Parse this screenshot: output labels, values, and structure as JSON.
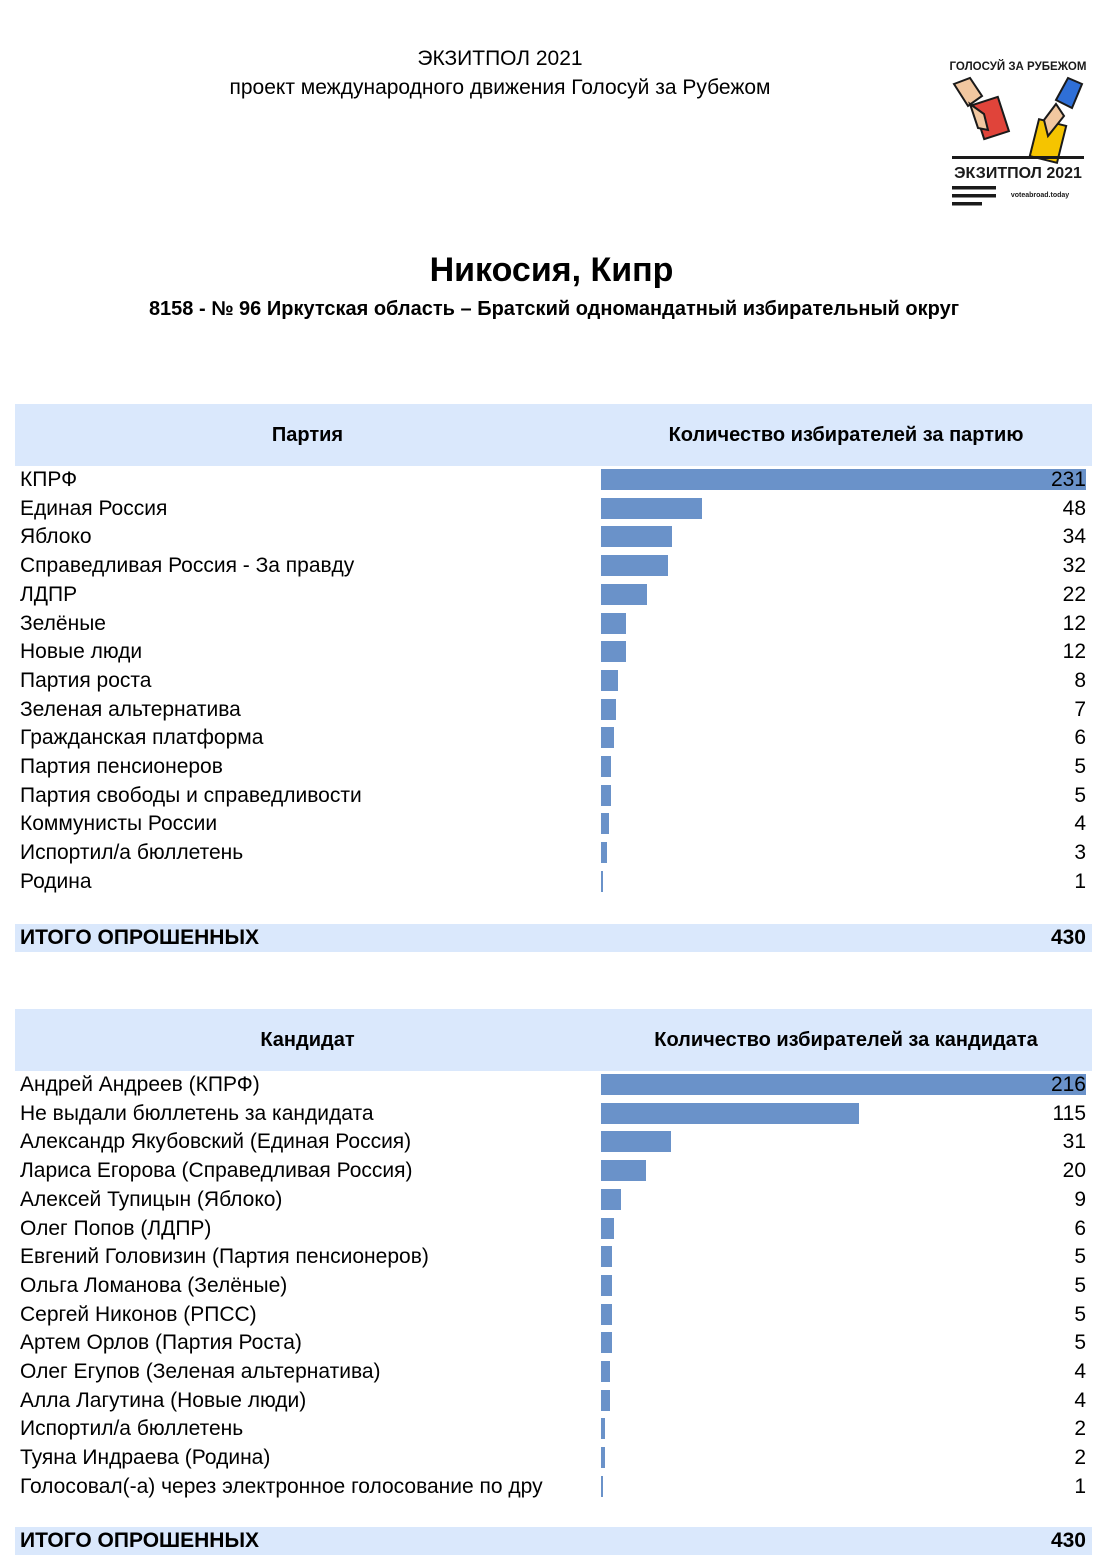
{
  "header": {
    "line1": "ЭКЗИТПОЛ 2021",
    "line2": "проект международного движения Голосуй за Рубежом"
  },
  "logo": {
    "top_text": "ГОЛОСУЙ ЗА РУБЕЖОМ",
    "bottom_text": "ЭКЗИТПОЛ 2021",
    "site_text": "voteabroad.today",
    "colors": {
      "red": "#e0443a",
      "yellow": "#f5c400",
      "blue": "#2f6fd6",
      "dark": "#1a1a1a"
    }
  },
  "title": "Никосия, Кипр",
  "subtitle": "8158 - № 96 Иркутская область – Братский одномандатный избирательный округ",
  "colors": {
    "header_bg": "#dae8fc",
    "bar": "#6a92c9"
  },
  "party_table": {
    "col_name": "Партия",
    "col_count": "Количество избирателей за партию",
    "rows": [
      {
        "label": "КПРФ",
        "value": 231
      },
      {
        "label": "Единая Россия",
        "value": 48
      },
      {
        "label": "Яблоко",
        "value": 34
      },
      {
        "label": "Справедливая Россия - За правду",
        "value": 32
      },
      {
        "label": "ЛДПР",
        "value": 22
      },
      {
        "label": "Зелёные",
        "value": 12
      },
      {
        "label": "Новые люди",
        "value": 12
      },
      {
        "label": "Партия роста",
        "value": 8
      },
      {
        "label": "Зеленая альтернатива",
        "value": 7
      },
      {
        "label": "Гражданская платформа",
        "value": 6
      },
      {
        "label": "Партия пенсионеров",
        "value": 5
      },
      {
        "label": "Партия свободы и справедливости",
        "value": 5
      },
      {
        "label": "Коммунисты России",
        "value": 4
      },
      {
        "label": "Испортил/а бюллетень",
        "value": 3
      },
      {
        "label": "Родина",
        "value": 1
      }
    ],
    "total_label": "ИТОГО ОПРОШЕННЫХ",
    "total_value": "430"
  },
  "candidate_table": {
    "col_name": "Кандидат",
    "col_count": "Количество избирателей за кандидата",
    "rows": [
      {
        "label": "Андрей Андреев (КПРФ)",
        "value": 216
      },
      {
        "label": "Не выдали бюллетень за кандидата",
        "value": 115
      },
      {
        "label": "Александр Якубовский (Единая Россия)",
        "value": 31
      },
      {
        "label": "Лариса Егорова (Справедливая Россия)",
        "value": 20
      },
      {
        "label": "Алексей Тупицын (Яблоко)",
        "value": 9
      },
      {
        "label": "Олег Попов (ЛДПР)",
        "value": 6
      },
      {
        "label": "Евгений Головизин (Партия пенсионеров)",
        "value": 5
      },
      {
        "label": "Ольга Ломанова (Зелёные)",
        "value": 5
      },
      {
        "label": "Сергей Никонов (РПСС)",
        "value": 5
      },
      {
        "label": "Артем Орлов (Партия Роста)",
        "value": 5
      },
      {
        "label": "Олег Егупов (Зеленая альтернатива)",
        "value": 4
      },
      {
        "label": "Алла Лагутина (Новые люди)",
        "value": 4
      },
      {
        "label": "Испортил/а бюллетень",
        "value": 2
      },
      {
        "label": "Туяна Индраева (Родина)",
        "value": 2
      },
      {
        "label": "Голосовал(-а) через электронное голосование по дру",
        "value": 1
      }
    ],
    "total_label": "ИТОГО ОПРОШЕННЫХ",
    "total_value": "430"
  }
}
